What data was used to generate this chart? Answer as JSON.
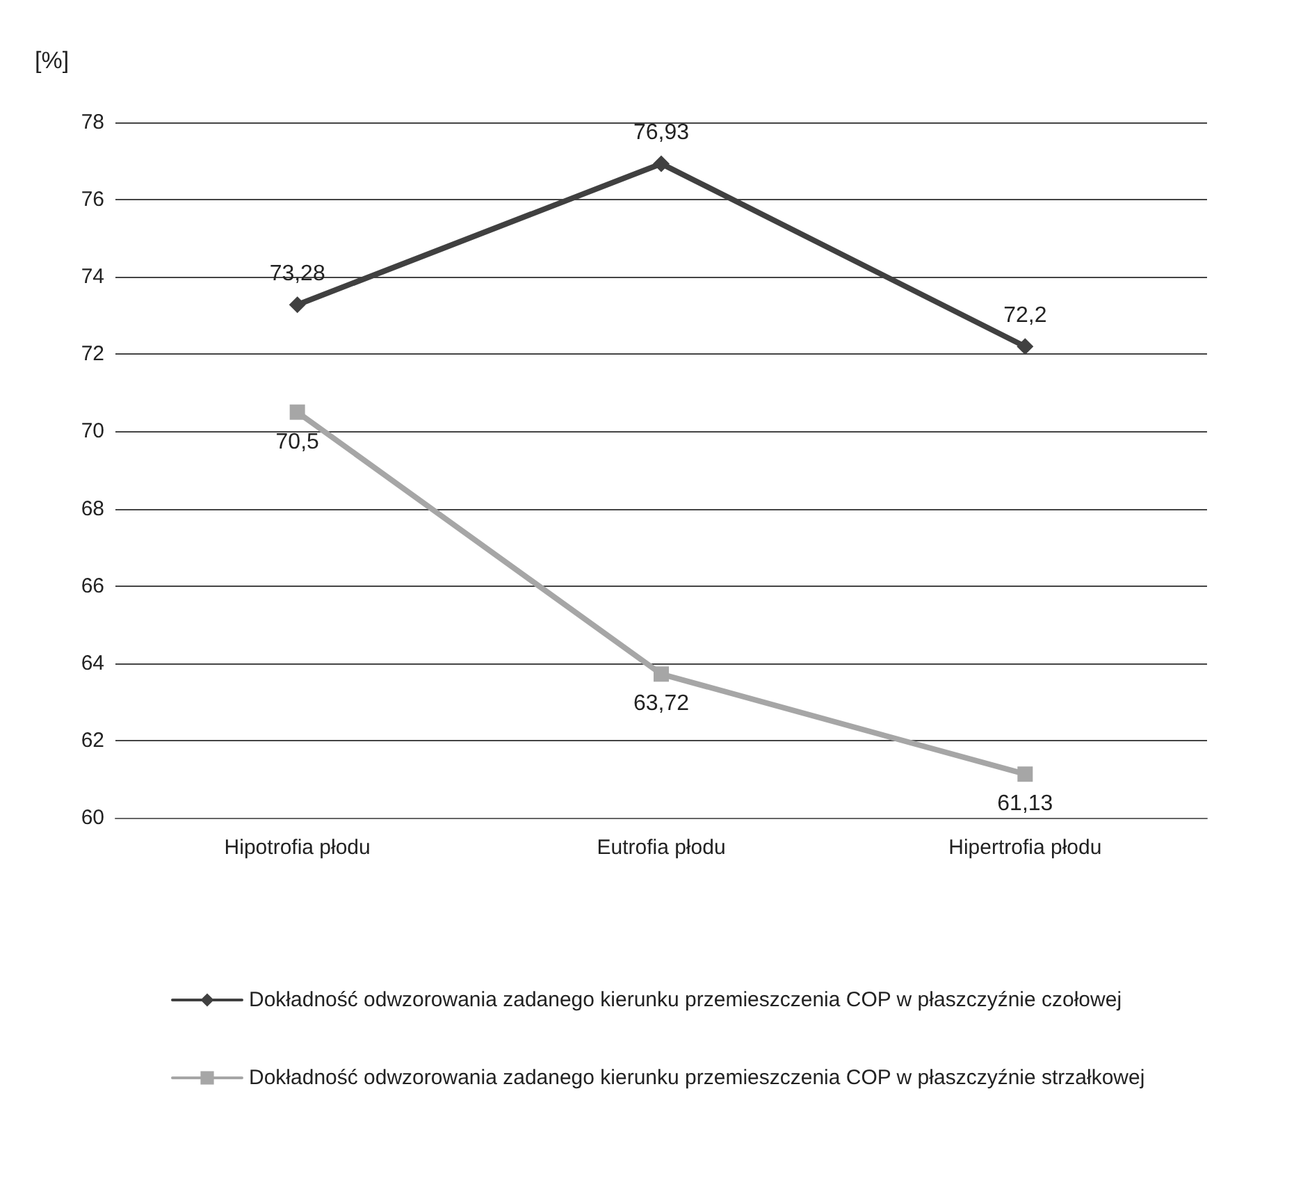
{
  "chart_data": {
    "type": "line",
    "ylabel": "[%]",
    "categories": [
      "Hipotrofia płodu",
      "Eutrofia płodu",
      "Hipertrofia płodu"
    ],
    "series": [
      {
        "name": "Dokładność odwzorowania zadanego kierunku przemieszczenia COP w płaszczyźnie czołowej",
        "color": "#404040",
        "marker": "diamond",
        "values": [
          73.28,
          76.93,
          72.2
        ],
        "value_labels": [
          "73,28",
          "76,93",
          "72,2"
        ]
      },
      {
        "name": "Dokładność odwzorowania zadanego kierunku przemieszczenia COP w płaszczyźnie strzałkowej",
        "color": "#a6a6a6",
        "marker": "square",
        "values": [
          70.5,
          63.72,
          61.13
        ],
        "value_labels": [
          "70,5",
          "63,72",
          "61,13"
        ]
      }
    ],
    "ylim": [
      60,
      78
    ],
    "yticks": [
      60,
      62,
      64,
      66,
      68,
      70,
      72,
      74,
      76,
      78
    ],
    "grid": "y",
    "legend": "bottom",
    "line_style": "solid"
  }
}
